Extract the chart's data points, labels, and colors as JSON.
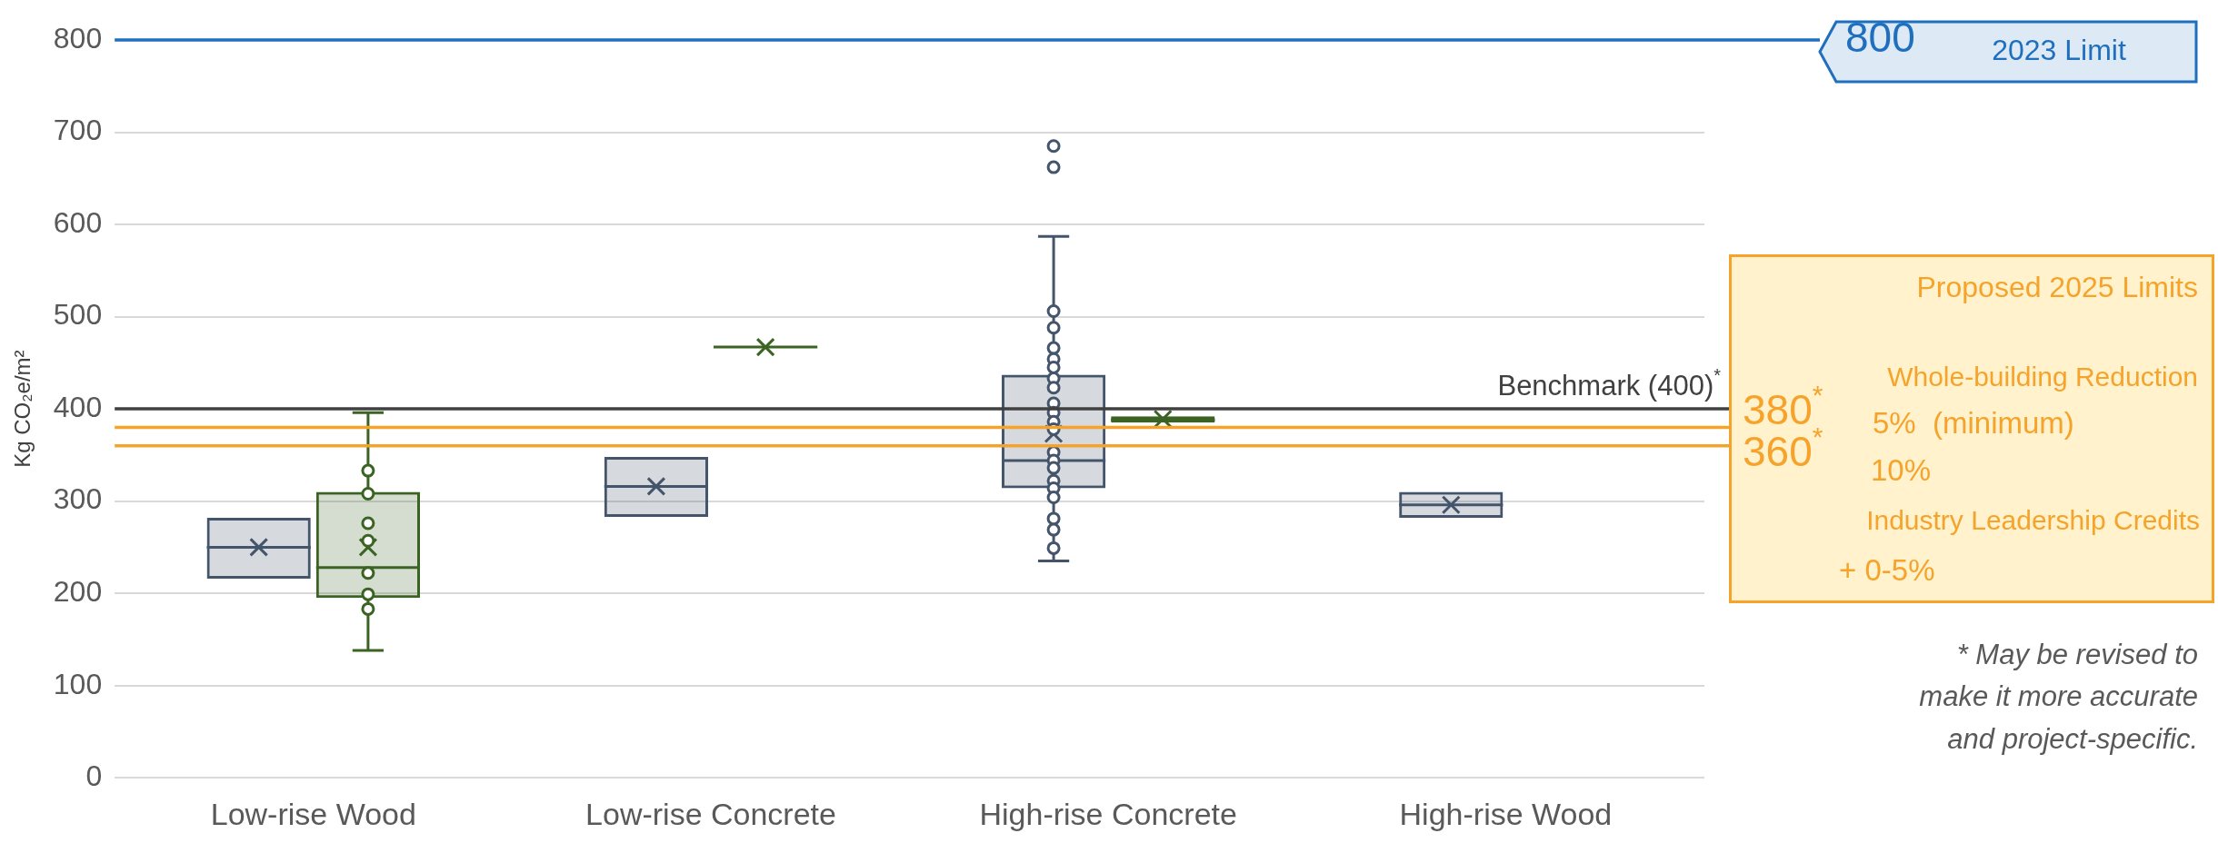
{
  "chart_data": {
    "type": "box",
    "ylabel": "Kg CO₂e/m²",
    "categories": [
      "Low-rise Wood",
      "Low-rise Concrete",
      "High-rise Concrete",
      "High-rise Wood"
    ],
    "series": [
      {
        "color": "#44546a",
        "boxes": [
          {
            "low": 216,
            "q1": 216,
            "median": 250,
            "q3": 282,
            "high": 282,
            "mean": 250
          },
          {
            "low": 283,
            "q1": 283,
            "median": 316,
            "q3": 348,
            "high": 348,
            "mean": 316
          },
          {
            "low": 235,
            "q1": 314,
            "median": 344,
            "q3": 437,
            "high": 587,
            "mean": 373,
            "outliers": [
              685,
              662,
              506,
              488,
              466,
              454,
              445,
              433,
              423,
              406,
              396,
              386,
              378,
              353,
              344,
              336,
              322,
              314,
              304,
              281,
              269,
              249
            ]
          },
          {
            "low": 282,
            "q1": 282,
            "median": 296,
            "q3": 310,
            "high": 310,
            "mean": 296
          }
        ]
      },
      {
        "color": "#3b6323",
        "boxes": [
          {
            "low": 138,
            "q1": 195,
            "median": 228,
            "q3": 310,
            "high": 396,
            "mean": 250,
            "outliers": [
              333,
              308,
              276,
              257,
              222,
              199,
              183
            ]
          },
          {
            "low": 467,
            "q1": 467,
            "median": 467,
            "q3": 467,
            "high": 467,
            "mean": 467
          },
          {
            "low": 385,
            "q1": 385,
            "median": 388,
            "q3": 392,
            "high": 392,
            "mean": 389
          },
          null
        ]
      }
    ],
    "ylim": [
      0,
      800
    ],
    "yticks": [
      0,
      100,
      200,
      300,
      400,
      500,
      600,
      700,
      800
    ],
    "grid": "y",
    "legend": false,
    "ref_lines": [
      {
        "axis": "y",
        "value": 800,
        "label": "800",
        "color": "#1f6fbf"
      },
      {
        "axis": "y",
        "value": 400,
        "label": "Benchmark (400)$^{*}$",
        "color": "#404040"
      },
      {
        "axis": "y",
        "value": 380,
        "label": "380$^{*}$",
        "color": "#f5a32a"
      },
      {
        "axis": "y",
        "value": 360,
        "label": "360$^{*}$",
        "color": "#f5a32a"
      }
    ],
    "annotations": [
      "2023 Limit",
      "Proposed 2025 Limits",
      "Whole-building Reduction",
      "5%  (minimum)",
      "10%",
      "Industry Leadership Credits",
      "+ 0-5%",
      "* May be revised to make it more accurate and project-specific."
    ]
  }
}
